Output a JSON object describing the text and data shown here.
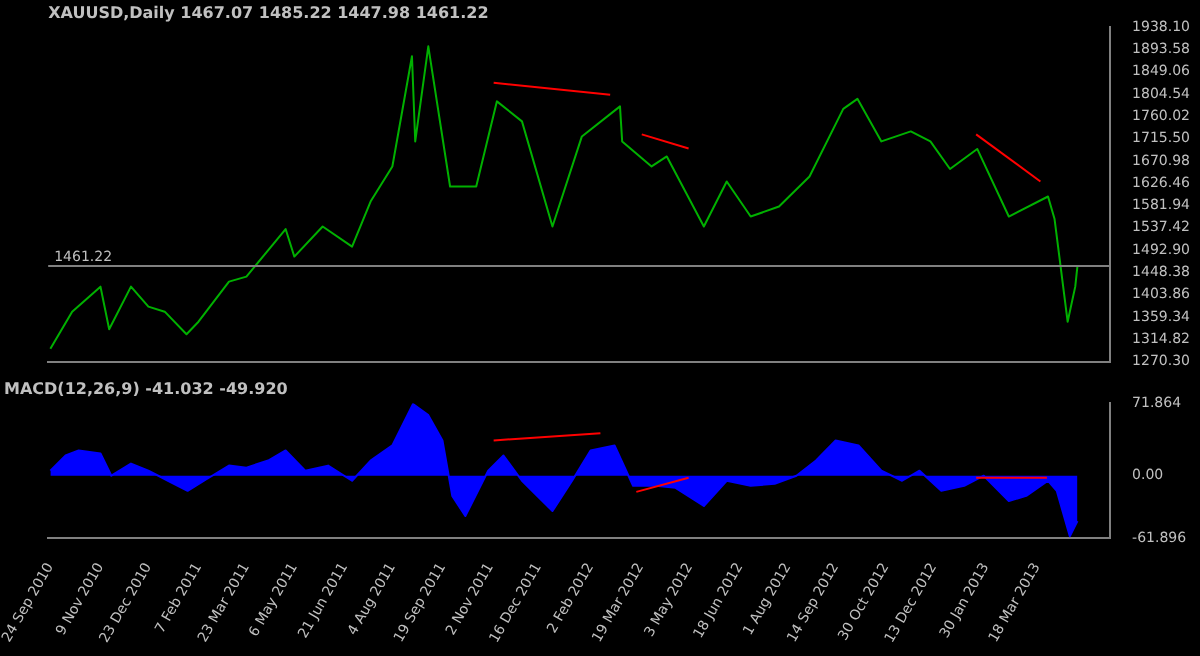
{
  "chart_data": [
    {
      "type": "line",
      "title": "XAUUSD,Daily 1467.07 1485.22 1447.98 1461.22",
      "marker": "none",
      "tick_labels": "y",
      "xlim": [
        "2010-09-22",
        "2013-05-24"
      ],
      "ylim": [
        1270.3,
        1938.1
      ],
      "yticks": [
        {
          "value": 1938.1,
          "label": "1938.10"
        },
        {
          "value": 1893.58,
          "label": "1893.58"
        },
        {
          "value": 1849.06,
          "label": "1849.06"
        },
        {
          "value": 1804.54,
          "label": "1804.54"
        },
        {
          "value": 1760.02,
          "label": "1760.02"
        },
        {
          "value": 1715.5,
          "label": "1715.50"
        },
        {
          "value": 1670.98,
          "label": "1670.98"
        },
        {
          "value": 1626.46,
          "label": "1626.46"
        },
        {
          "value": 1581.94,
          "label": "1581.94"
        },
        {
          "value": 1537.42,
          "label": "1537.42"
        },
        {
          "value": 1492.9,
          "label": "1492.90"
        },
        {
          "value": 1448.38,
          "label": "1448.38"
        },
        {
          "value": 1403.86,
          "label": "1403.86"
        },
        {
          "value": 1359.34,
          "label": "1359.34"
        },
        {
          "value": 1314.82,
          "label": "1314.82"
        },
        {
          "value": 1270.3,
          "label": "1270.30"
        }
      ],
      "ref_lines": [
        {
          "axis": "y",
          "value": 1461.22,
          "label": "1461.22",
          "color": "#808080"
        }
      ],
      "x": [
        "2010-09-24",
        "2010-10-14",
        "2010-11-09",
        "2010-11-17",
        "2010-12-07",
        "2010-12-23",
        "2011-01-07",
        "2011-01-27",
        "2011-02-07",
        "2011-03-07",
        "2011-03-23",
        "2011-04-28",
        "2011-05-06",
        "2011-06-01",
        "2011-06-28",
        "2011-07-15",
        "2011-08-04",
        "2011-08-22",
        "2011-08-25",
        "2011-09-06",
        "2011-09-26",
        "2011-10-20",
        "2011-11-08",
        "2011-12-01",
        "2011-12-29",
        "2012-01-25",
        "2012-02-29",
        "2012-03-02",
        "2012-03-29",
        "2012-04-12",
        "2012-05-16",
        "2012-06-06",
        "2012-06-28",
        "2012-07-24",
        "2012-08-21",
        "2012-09-21",
        "2012-10-04",
        "2012-10-26",
        "2012-11-22",
        "2012-12-10",
        "2012-12-28",
        "2013-01-22",
        "2013-02-20",
        "2013-03-28",
        "2013-04-03",
        "2013-04-15",
        "2013-04-22",
        "2013-04-24"
      ],
      "series": [
        {
          "color": "#00b000",
          "values": [
            1296,
            1370,
            1420,
            1335,
            1420,
            1380,
            1370,
            1325,
            1350,
            1430,
            1440,
            1535,
            1480,
            1540,
            1500,
            1590,
            1660,
            1880,
            1710,
            1900,
            1620,
            1620,
            1790,
            1750,
            1540,
            1720,
            1780,
            1710,
            1660,
            1680,
            1540,
            1630,
            1560,
            1580,
            1640,
            1775,
            1795,
            1710,
            1730,
            1710,
            1655,
            1695,
            1560,
            1600,
            1555,
            1350,
            1420,
            1461
          ]
        },
        {
          "type": "line",
          "color": "#ff0000",
          "x": [
            "2011-11-05",
            "2012-02-20"
          ],
          "values": [
            1827,
            1803
          ]
        },
        {
          "type": "line",
          "color": "#ff0000",
          "x": [
            "2012-03-20",
            "2012-05-02"
          ],
          "values": [
            1724,
            1696
          ]
        },
        {
          "type": "line",
          "color": "#ff0000",
          "x": [
            "2013-01-21",
            "2013-03-21"
          ],
          "values": [
            1724,
            1630
          ]
        }
      ]
    },
    {
      "type": "area",
      "title": "MACD(12,26,9) -41.032 -49.920",
      "marker": "none",
      "xlim": [
        "2010-09-22",
        "2013-05-24"
      ],
      "xticks": [
        {
          "value": "2010-09-24",
          "label": "24 Sep 2010"
        },
        {
          "value": "2010-11-09",
          "label": "9 Nov 2010"
        },
        {
          "value": "2010-12-23",
          "label": "23 Dec 2010"
        },
        {
          "value": "2011-02-07",
          "label": "7 Feb 2011"
        },
        {
          "value": "2011-03-23",
          "label": "23 Mar 2011"
        },
        {
          "value": "2011-05-06",
          "label": "6 May 2011"
        },
        {
          "value": "2011-06-21",
          "label": "21 Jun 2011"
        },
        {
          "value": "2011-08-04",
          "label": "4 Aug 2011"
        },
        {
          "value": "2011-09-19",
          "label": "19 Sep 2011"
        },
        {
          "value": "2011-11-02",
          "label": "2 Nov 2011"
        },
        {
          "value": "2011-12-16",
          "label": "16 Dec 2011"
        },
        {
          "value": "2012-02-02",
          "label": "2 Feb 2012"
        },
        {
          "value": "2012-03-19",
          "label": "19 Mar 2012"
        },
        {
          "value": "2012-05-03",
          "label": "3 May 2012"
        },
        {
          "value": "2012-06-18",
          "label": "18 Jun 2012"
        },
        {
          "value": "2012-08-01",
          "label": "1 Aug 2012"
        },
        {
          "value": "2012-09-14",
          "label": "14 Sep 2012"
        },
        {
          "value": "2012-10-30",
          "label": "30 Oct 2012"
        },
        {
          "value": "2012-12-13",
          "label": "13 Dec 2012"
        },
        {
          "value": "2013-01-30",
          "label": "30 Jan 2013"
        },
        {
          "value": "2013-03-18",
          "label": "18 Mar 2013"
        }
      ],
      "ylim": [
        -61.896,
        71.864
      ],
      "yticks": [
        71.864,
        {
          "value": 0,
          "label": "0.00"
        },
        -61.896
      ],
      "x": [
        "2010-09-24",
        "2010-10-08",
        "2010-10-20",
        "2010-11-09",
        "2010-11-19",
        "2010-12-07",
        "2010-12-23",
        "2011-01-10",
        "2011-01-28",
        "2011-02-15",
        "2011-03-07",
        "2011-03-23",
        "2011-04-12",
        "2011-04-28",
        "2011-05-16",
        "2011-06-06",
        "2011-06-28",
        "2011-07-15",
        "2011-08-04",
        "2011-08-23",
        "2011-09-06",
        "2011-09-19",
        "2011-09-28",
        "2011-10-10",
        "2011-10-31",
        "2011-11-14",
        "2011-12-01",
        "2011-12-29",
        "2012-01-16",
        "2012-02-02",
        "2012-02-24",
        "2012-03-12",
        "2012-04-02",
        "2012-04-20",
        "2012-05-16",
        "2012-06-06",
        "2012-06-28",
        "2012-07-20",
        "2012-08-09",
        "2012-08-27",
        "2012-09-14",
        "2012-10-05",
        "2012-10-26",
        "2012-11-14",
        "2012-11-30",
        "2012-12-20",
        "2013-01-10",
        "2013-01-28",
        "2013-02-20",
        "2013-03-08",
        "2013-03-28",
        "2013-04-05",
        "2013-04-17",
        "2013-04-24"
      ],
      "series": [
        {
          "color": "#0000ff",
          "values": [
            5,
            20,
            25,
            22,
            0,
            12,
            5,
            -5,
            -15,
            -3,
            10,
            8,
            15,
            25,
            5,
            10,
            -5,
            15,
            30,
            71,
            60,
            35,
            -20,
            -40,
            5,
            20,
            -5,
            -35,
            -5,
            25,
            30,
            -10,
            -10,
            -12,
            -30,
            -5,
            -10,
            -8,
            0,
            15,
            35,
            30,
            5,
            -5,
            5,
            -15,
            -10,
            0,
            -25,
            -20,
            -5,
            -15,
            -60,
            -45
          ]
        },
        {
          "type": "line",
          "color": "#ff0000",
          "x": [
            "2011-11-05",
            "2012-02-11"
          ],
          "values": [
            35,
            42
          ]
        },
        {
          "type": "line",
          "color": "#ff0000",
          "x": [
            "2012-03-15",
            "2012-05-02"
          ],
          "values": [
            -16,
            -2
          ]
        },
        {
          "type": "line",
          "color": "#ff0000",
          "x": [
            "2013-01-21",
            "2013-03-27"
          ],
          "values": [
            -2,
            -2
          ]
        }
      ]
    }
  ]
}
